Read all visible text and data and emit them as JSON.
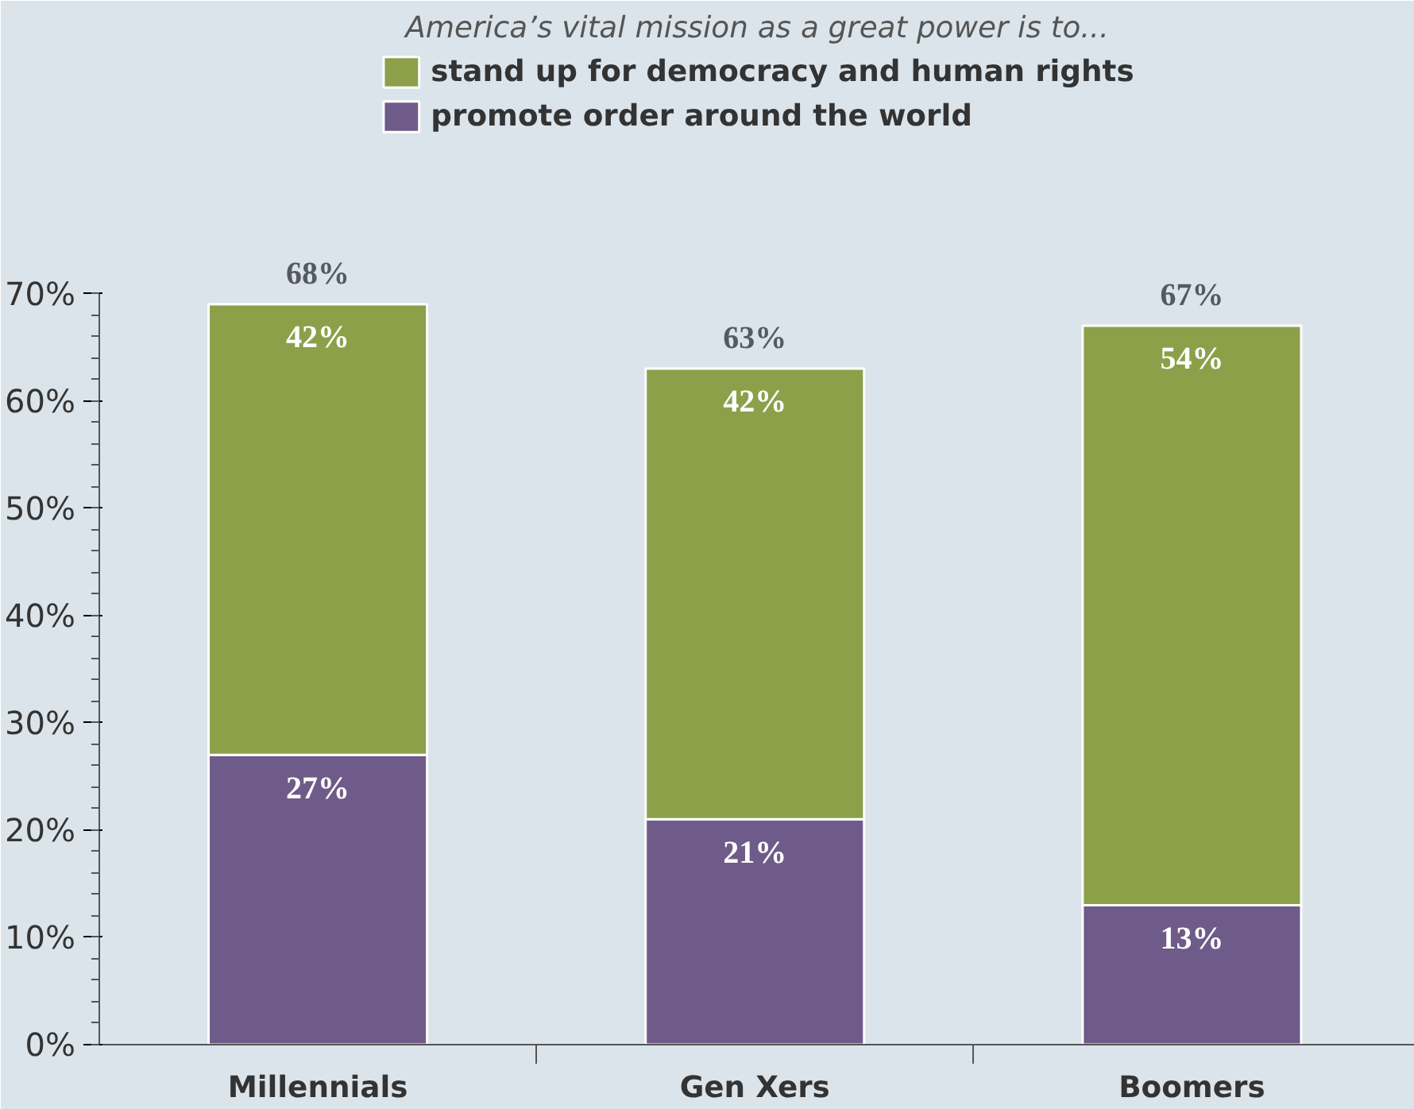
{
  "chart_data": {
    "type": "bar",
    "stacked": true,
    "title": "America’s vital mission as a great power is to...",
    "categories": [
      "Millennials",
      "Gen Xers",
      "Boomers"
    ],
    "series": [
      {
        "name": "promote order around the world",
        "color": "#6f5b89",
        "values": [
          27,
          21,
          13
        ],
        "value_labels": [
          "27%",
          "21%",
          "13%"
        ]
      },
      {
        "name": "stand up for democracy and human rights",
        "color": "#8ca04a",
        "values": [
          42,
          42,
          54
        ],
        "value_labels": [
          "42%",
          "42%",
          "54%"
        ]
      }
    ],
    "totals": [
      "68%",
      "63%",
      "67%"
    ],
    "ylim": [
      0,
      70
    ],
    "yticks": [
      {
        "value": 0,
        "label": "0%"
      },
      {
        "value": 10,
        "label": "10%"
      },
      {
        "value": 20,
        "label": "20%"
      },
      {
        "value": 30,
        "label": "30%"
      },
      {
        "value": 40,
        "label": "40%"
      },
      {
        "value": 50,
        "label": "50%"
      },
      {
        "value": 60,
        "label": "60%"
      },
      {
        "value": 70,
        "label": "70%"
      }
    ],
    "legend": "top",
    "grid": false
  }
}
